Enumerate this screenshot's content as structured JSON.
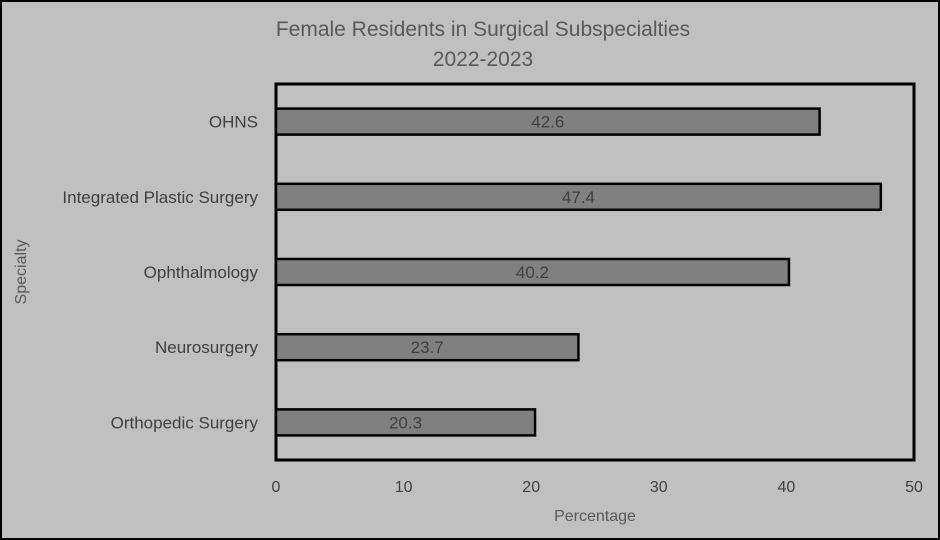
{
  "chart_data": {
    "type": "bar",
    "orientation": "horizontal",
    "title": "Female Residents in Surgical Subspecialties",
    "subtitle": "2022-2023",
    "xlabel": "Percentage",
    "ylabel": "Specialty",
    "xlim": [
      0,
      50
    ],
    "xticks": [
      "0",
      "10",
      "20",
      "30",
      "40",
      "50"
    ],
    "categories": [
      "OHNS",
      "Integrated Plastic Surgery",
      "Ophthalmology",
      "Neurosurgery",
      "Orthopedic Surgery"
    ],
    "values": [
      42.6,
      47.4,
      40.2,
      23.7,
      20.3
    ],
    "data_labels": [
      "42.6",
      "47.4",
      "40.2",
      "23.7",
      "20.3"
    ],
    "grid": false,
    "legend": "none",
    "colors": {
      "background": "#c0c0c0",
      "bar_fill": "#808080",
      "bar_stroke": "#000000",
      "text": "#3f3f3f",
      "title": "#595959"
    }
  }
}
